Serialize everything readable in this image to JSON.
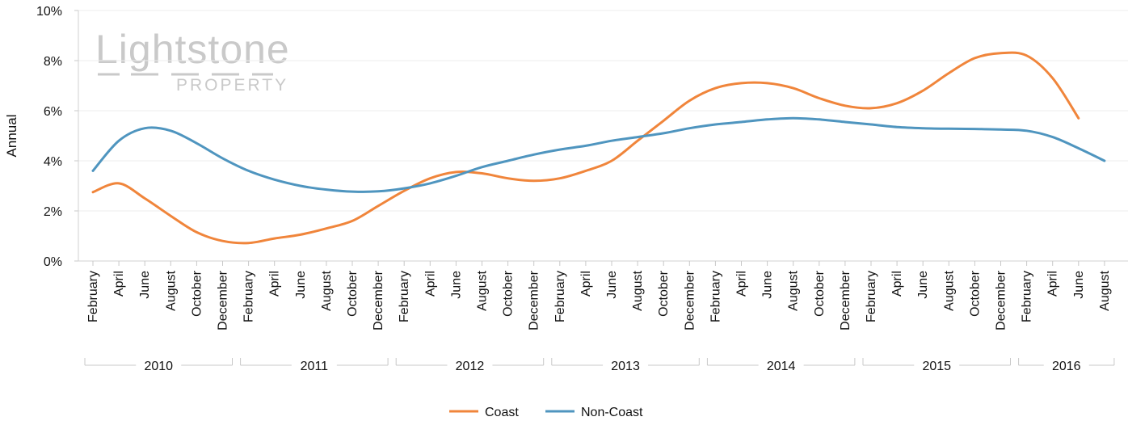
{
  "watermark": {
    "brand": "Lightstone",
    "sub": "PROPERTY"
  },
  "chart_data": {
    "type": "line",
    "ylabel": "Annual",
    "xlabel": "",
    "ylim": [
      0,
      10
    ],
    "y_ticks": [
      "0%",
      "2%",
      "4%",
      "6%",
      "8%",
      "10%"
    ],
    "y_tick_values": [
      0,
      2,
      4,
      6,
      8,
      10
    ],
    "grid": true,
    "legend_position": "bottom-center",
    "x_month_labels": [
      "February",
      "April",
      "June",
      "August",
      "October",
      "December",
      "February",
      "April",
      "June",
      "August",
      "October",
      "December",
      "February",
      "April",
      "June",
      "August",
      "October",
      "December",
      "February",
      "April",
      "June",
      "August",
      "October",
      "December",
      "February",
      "April",
      "June",
      "August",
      "October",
      "December",
      "February",
      "April",
      "June",
      "August",
      "October",
      "December",
      "February",
      "April",
      "June",
      "August"
    ],
    "x_year_groups": [
      {
        "label": "2010",
        "start": 0,
        "end": 5
      },
      {
        "label": "2011",
        "start": 6,
        "end": 11
      },
      {
        "label": "2012",
        "start": 12,
        "end": 17
      },
      {
        "label": "2013",
        "start": 18,
        "end": 23
      },
      {
        "label": "2014",
        "start": 24,
        "end": 29
      },
      {
        "label": "2015",
        "start": 30,
        "end": 35
      },
      {
        "label": "2016",
        "start": 36,
        "end": 39
      }
    ],
    "series": [
      {
        "name": "Coast",
        "color": "#f0853b",
        "values": [
          2.75,
          3.1,
          2.5,
          1.8,
          1.15,
          0.8,
          0.72,
          0.9,
          1.05,
          1.3,
          1.6,
          2.2,
          2.8,
          3.3,
          3.55,
          3.5,
          3.3,
          3.2,
          3.3,
          3.6,
          4.0,
          4.8,
          5.6,
          6.4,
          6.9,
          7.1,
          7.1,
          6.9,
          6.5,
          6.2,
          6.1,
          6.3,
          6.8,
          7.5,
          8.1,
          8.3,
          8.2,
          7.3,
          5.7
        ]
      },
      {
        "name": "Non-Coast",
        "color": "#4f95bf",
        "values": [
          3.6,
          4.8,
          5.3,
          5.2,
          4.7,
          4.1,
          3.6,
          3.25,
          3.0,
          2.85,
          2.77,
          2.78,
          2.9,
          3.1,
          3.4,
          3.75,
          4.0,
          4.25,
          4.45,
          4.6,
          4.8,
          4.95,
          5.1,
          5.3,
          5.45,
          5.55,
          5.65,
          5.7,
          5.65,
          5.55,
          5.45,
          5.35,
          5.3,
          5.28,
          5.27,
          5.25,
          5.2,
          4.95,
          4.5,
          4.0
        ]
      }
    ]
  }
}
